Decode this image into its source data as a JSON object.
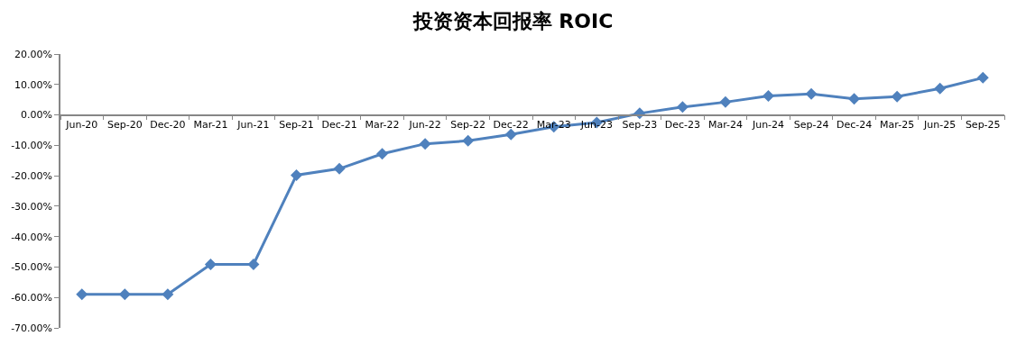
{
  "chart_data": {
    "type": "line",
    "title": "投资资本回报率 ROIC",
    "categories": [
      "Jun-20",
      "Sep-20",
      "Dec-20",
      "Mar-21",
      "Jun-21",
      "Sep-21",
      "Dec-21",
      "Mar-22",
      "Jun-22",
      "Sep-22",
      "Dec-22",
      "Mar-23",
      "Jun-23",
      "Sep-23",
      "Dec-23",
      "Mar-24",
      "Jun-24",
      "Sep-24",
      "Dec-24",
      "Mar-25",
      "Jun-25",
      "Sep-25"
    ],
    "series": [
      {
        "color": "#4f81bd",
        "values": [
          -59.0,
          -59.0,
          -59.0,
          -49.1,
          -49.1,
          -19.8,
          -17.7,
          -12.8,
          -9.5,
          -8.5,
          -6.4,
          -3.9,
          -2.5,
          0.5,
          2.6,
          4.2,
          6.2,
          6.9,
          5.3,
          6.0,
          8.7,
          12.2
        ]
      }
    ],
    "ylim": [
      -70,
      20
    ],
    "yticks": [
      {
        "value": -70,
        "label": "-70.00%"
      },
      {
        "value": -60,
        "label": "-60.00%"
      },
      {
        "value": -50,
        "label": "-50.00%"
      },
      {
        "value": -40,
        "label": "-40.00%"
      },
      {
        "value": -30,
        "label": "-30.00%"
      },
      {
        "value": -20,
        "label": "-20.00%"
      },
      {
        "value": -10,
        "label": "-10.00%"
      },
      {
        "value": 0,
        "label": "0.00%"
      },
      {
        "value": 10,
        "label": "10.00%"
      },
      {
        "value": 20,
        "label": "20.00%"
      }
    ],
    "marker": "diamond",
    "line_style": "solid"
  }
}
